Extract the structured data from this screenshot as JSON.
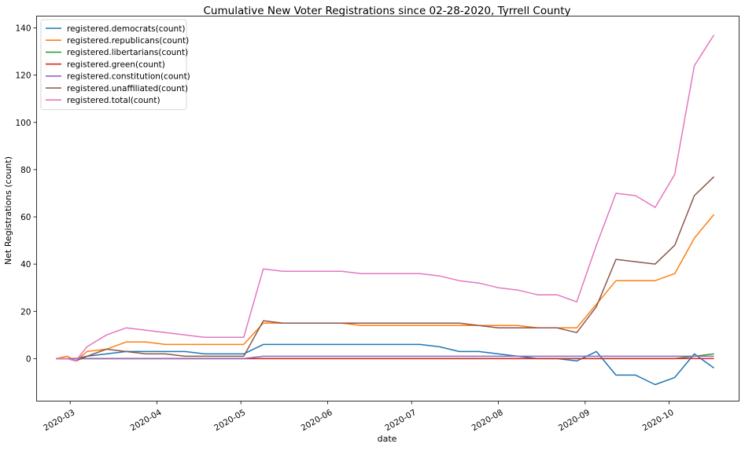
{
  "chart_data": {
    "type": "line",
    "title": "Cumulative New Voter Registrations since 02-28-2020, Tyrrell County",
    "xlabel": "date",
    "ylabel": "Net Registrations (count)",
    "xlim": [
      "2020-02-18",
      "2020-10-26"
    ],
    "ylim": [
      -18,
      145
    ],
    "yticks": [
      0,
      20,
      40,
      60,
      80,
      100,
      120,
      140
    ],
    "xticks": [
      {
        "date": "2020-03-01",
        "label": "2020-03"
      },
      {
        "date": "2020-04-01",
        "label": "2020-04"
      },
      {
        "date": "2020-05-01",
        "label": "2020-05"
      },
      {
        "date": "2020-06-01",
        "label": "2020-06"
      },
      {
        "date": "2020-07-01",
        "label": "2020-07"
      },
      {
        "date": "2020-08-01",
        "label": "2020-08"
      },
      {
        "date": "2020-09-01",
        "label": "2020-09"
      },
      {
        "date": "2020-10-01",
        "label": "2020-10"
      }
    ],
    "grid": false,
    "legend_position": "top-left",
    "x": [
      "2020-02-25",
      "2020-02-29",
      "2020-03-03",
      "2020-03-07",
      "2020-03-14",
      "2020-03-21",
      "2020-03-28",
      "2020-04-04",
      "2020-04-11",
      "2020-04-18",
      "2020-04-25",
      "2020-05-02",
      "2020-05-09",
      "2020-05-16",
      "2020-05-23",
      "2020-05-30",
      "2020-06-06",
      "2020-06-13",
      "2020-06-20",
      "2020-06-27",
      "2020-07-04",
      "2020-07-11",
      "2020-07-18",
      "2020-07-25",
      "2020-08-01",
      "2020-08-08",
      "2020-08-15",
      "2020-08-22",
      "2020-08-29",
      "2020-09-05",
      "2020-09-12",
      "2020-09-19",
      "2020-09-26",
      "2020-10-03",
      "2020-10-10",
      "2020-10-17"
    ],
    "series": [
      {
        "name": "registered.democrats(count)",
        "color": "#1f77b4",
        "values": [
          0,
          0,
          0,
          1,
          2,
          3,
          3,
          3,
          3,
          2,
          2,
          2,
          6,
          6,
          6,
          6,
          6,
          6,
          6,
          6,
          6,
          5,
          3,
          3,
          2,
          1,
          0,
          0,
          -1,
          3,
          -7,
          -7,
          -11,
          -8,
          2,
          -4
        ]
      },
      {
        "name": "registered.republicans(count)",
        "color": "#ff7f0e",
        "values": [
          0,
          1,
          -1,
          3,
          4,
          7,
          7,
          6,
          6,
          6,
          6,
          6,
          15,
          15,
          15,
          15,
          15,
          14,
          14,
          14,
          14,
          14,
          14,
          14,
          14,
          14,
          13,
          13,
          13,
          23,
          33,
          33,
          33,
          36,
          51,
          61
        ]
      },
      {
        "name": "registered.libertarians(count)",
        "color": "#2ca02c",
        "values": [
          0,
          0,
          0,
          0,
          0,
          0,
          0,
          0,
          0,
          0,
          0,
          0,
          0,
          0,
          0,
          0,
          0,
          0,
          0,
          0,
          0,
          0,
          0,
          0,
          0,
          0,
          0,
          0,
          0,
          0,
          0,
          0,
          0,
          0,
          1,
          2
        ]
      },
      {
        "name": "registered.green(count)",
        "color": "#d62728",
        "values": [
          0,
          0,
          0,
          0,
          0,
          0,
          0,
          0,
          0,
          0,
          0,
          0,
          0,
          0,
          0,
          0,
          0,
          0,
          0,
          0,
          0,
          0,
          0,
          0,
          0,
          0,
          0,
          0,
          0,
          0,
          0,
          0,
          0,
          0,
          0,
          0
        ]
      },
      {
        "name": "registered.constitution(count)",
        "color": "#9467bd",
        "values": [
          0,
          0,
          0,
          0,
          0,
          0,
          0,
          0,
          0,
          0,
          0,
          0,
          1,
          1,
          1,
          1,
          1,
          1,
          1,
          1,
          1,
          1,
          1,
          1,
          1,
          1,
          1,
          1,
          1,
          1,
          1,
          1,
          1,
          1,
          1,
          1
        ]
      },
      {
        "name": "registered.unaffiliated(count)",
        "color": "#8c564b",
        "values": [
          0,
          0,
          -1,
          1,
          4,
          3,
          2,
          2,
          1,
          1,
          1,
          1,
          16,
          15,
          15,
          15,
          15,
          15,
          15,
          15,
          15,
          15,
          15,
          14,
          13,
          13,
          13,
          13,
          11,
          22,
          42,
          41,
          40,
          48,
          69,
          77
        ]
      },
      {
        "name": "registered.total(count)",
        "color": "#e377c2",
        "values": [
          0,
          0,
          -1,
          5,
          10,
          13,
          12,
          11,
          10,
          9,
          9,
          9,
          38,
          37,
          37,
          37,
          37,
          36,
          36,
          36,
          36,
          35,
          33,
          32,
          30,
          29,
          27,
          27,
          24,
          48,
          70,
          69,
          64,
          78,
          124,
          137
        ]
      }
    ]
  }
}
